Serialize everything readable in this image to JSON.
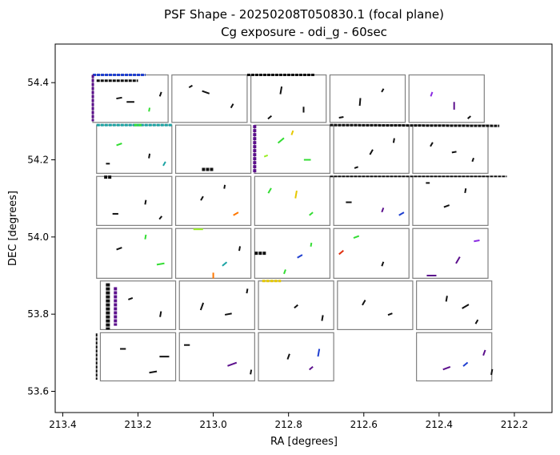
{
  "chart_data": {
    "type": "scatter",
    "title_line1": "PSF Shape - 20250208T050830.1 (focal plane)",
    "title_line2": "Cg exposure - odi_g - 60sec",
    "xlabel": "RA [degrees]",
    "ylabel": "DEC [degrees]",
    "x_inverted": true,
    "xlim": [
      213.42,
      212.1
    ],
    "ylim": [
      53.545,
      54.5
    ],
    "xticks": [
      "213.4",
      "213.2",
      "213.0",
      "212.8",
      "212.6",
      "212.4",
      "212.2"
    ],
    "yticks": [
      "53.6",
      "53.8",
      "54.0",
      "54.2",
      "54.4"
    ],
    "grid": false,
    "chip_border_color": "#808080",
    "colors": {
      "black": "#111111",
      "purple": "#5b0f8c",
      "violet": "#8a2be2",
      "blue": "#1f3fd0",
      "teal": "#1aa3a3",
      "green": "#33dd33",
      "lime": "#99ee22",
      "yellow": "#e6c800",
      "orange": "#ff7700",
      "red": "#e03010"
    },
    "chips": [
      {
        "ra": [
          213.32,
          213.12
        ],
        "dec": [
          54.297,
          54.42
        ]
      },
      {
        "ra": [
          213.11,
          212.91
        ],
        "dec": [
          54.297,
          54.42
        ]
      },
      {
        "ra": [
          212.9,
          212.7
        ],
        "dec": [
          54.297,
          54.42
        ]
      },
      {
        "ra": [
          212.69,
          212.49
        ],
        "dec": [
          54.297,
          54.42
        ]
      },
      {
        "ra": [
          212.48,
          212.28
        ],
        "dec": [
          54.297,
          54.42
        ]
      },
      {
        "ra": [
          213.31,
          213.11
        ],
        "dec": [
          54.165,
          54.29
        ]
      },
      {
        "ra": [
          213.1,
          212.9
        ],
        "dec": [
          54.165,
          54.29
        ]
      },
      {
        "ra": [
          212.89,
          212.69
        ],
        "dec": [
          54.165,
          54.29
        ]
      },
      {
        "ra": [
          212.68,
          212.48
        ],
        "dec": [
          54.165,
          54.29
        ]
      },
      {
        "ra": [
          212.47,
          212.27
        ],
        "dec": [
          54.165,
          54.29
        ]
      },
      {
        "ra": [
          213.31,
          213.11
        ],
        "dec": [
          54.03,
          54.157
        ]
      },
      {
        "ra": [
          213.1,
          212.9
        ],
        "dec": [
          54.03,
          54.157
        ]
      },
      {
        "ra": [
          212.89,
          212.69
        ],
        "dec": [
          54.03,
          54.157
        ]
      },
      {
        "ra": [
          212.68,
          212.48
        ],
        "dec": [
          54.03,
          54.157
        ]
      },
      {
        "ra": [
          212.47,
          212.27
        ],
        "dec": [
          54.03,
          54.157
        ]
      },
      {
        "ra": [
          213.31,
          213.11
        ],
        "dec": [
          53.893,
          54.022
        ]
      },
      {
        "ra": [
          213.1,
          212.9
        ],
        "dec": [
          53.893,
          54.022
        ]
      },
      {
        "ra": [
          212.89,
          212.69
        ],
        "dec": [
          53.893,
          54.022
        ]
      },
      {
        "ra": [
          212.68,
          212.48
        ],
        "dec": [
          53.893,
          54.022
        ]
      },
      {
        "ra": [
          212.47,
          212.27
        ],
        "dec": [
          53.893,
          54.022
        ]
      },
      {
        "ra": [
          213.3,
          213.1
        ],
        "dec": [
          53.76,
          53.886
        ]
      },
      {
        "ra": [
          213.09,
          212.89
        ],
        "dec": [
          53.76,
          53.886
        ]
      },
      {
        "ra": [
          212.88,
          212.68
        ],
        "dec": [
          53.76,
          53.886
        ]
      },
      {
        "ra": [
          212.67,
          212.47
        ],
        "dec": [
          53.76,
          53.886
        ]
      },
      {
        "ra": [
          212.46,
          212.26
        ],
        "dec": [
          53.76,
          53.886
        ]
      },
      {
        "ra": [
          213.3,
          213.1
        ],
        "dec": [
          53.627,
          53.752
        ]
      },
      {
        "ra": [
          213.09,
          212.89
        ],
        "dec": [
          53.627,
          53.752
        ]
      },
      {
        "ra": [
          212.88,
          212.68
        ],
        "dec": [
          53.627,
          53.752
        ]
      },
      {
        "ra": [
          212.46,
          212.26
        ],
        "dec": [
          53.627,
          53.752
        ]
      }
    ],
    "strips": [
      {
        "ra": [
          213.32,
          213.18
        ],
        "dec": [
          54.42,
          54.42
        ],
        "color": "blue",
        "width": 3
      },
      {
        "ra": [
          213.31,
          213.2
        ],
        "dec": [
          54.405,
          54.405
        ],
        "color": "black",
        "width": 3
      },
      {
        "ra": [
          213.32,
          213.32
        ],
        "dec": [
          54.42,
          54.3
        ],
        "color": "purple",
        "width": 3
      },
      {
        "ra": [
          212.91,
          212.73
        ],
        "dec": [
          54.42,
          54.42
        ],
        "color": "black",
        "width": 3
      },
      {
        "ra": [
          213.31,
          213.11
        ],
        "dec": [
          54.29,
          54.29
        ],
        "color": "teal",
        "width": 3
      },
      {
        "ra": [
          212.89,
          212.89
        ],
        "dec": [
          54.29,
          54.165
        ],
        "color": "purple",
        "width": 4
      },
      {
        "ra": [
          213.03,
          213.0
        ],
        "dec": [
          54.175,
          54.175
        ],
        "color": "black",
        "width": 4
      },
      {
        "ra": [
          212.69,
          212.24
        ],
        "dec": [
          54.29,
          54.288
        ],
        "color": "black",
        "width": 3
      },
      {
        "ra": [
          213.29,
          213.27
        ],
        "dec": [
          54.155,
          54.155
        ],
        "color": "black",
        "width": 4
      },
      {
        "ra": [
          212.69,
          212.22
        ],
        "dec": [
          54.157,
          54.157
        ],
        "color": "black",
        "width": 2
      },
      {
        "ra": [
          213.28,
          213.28
        ],
        "dec": [
          53.88,
          53.76
        ],
        "color": "black",
        "width": 5
      },
      {
        "ra": [
          213.26,
          213.26
        ],
        "dec": [
          53.87,
          53.77
        ],
        "color": "purple",
        "width": 4
      },
      {
        "ra": [
          213.31,
          213.31
        ],
        "dec": [
          53.75,
          53.63
        ],
        "color": "black",
        "width": 2
      },
      {
        "ra": [
          212.89,
          212.86
        ],
        "dec": [
          53.958,
          53.958
        ],
        "color": "black",
        "width": 4
      },
      {
        "ra": [
          212.87,
          212.82
        ],
        "dec": [
          53.886,
          53.886
        ],
        "color": "yellow",
        "width": 3
      },
      {
        "ra": [
          213.21,
          213.19
        ],
        "dec": [
          54.29,
          54.29
        ],
        "color": "green",
        "width": 3
      }
    ],
    "whiskers": [
      {
        "ra": 213.25,
        "dec": 54.36,
        "angle": 10,
        "len": 0.015,
        "color": "black"
      },
      {
        "ra": 213.17,
        "dec": 54.33,
        "angle": 80,
        "len": 0.01,
        "color": "green"
      },
      {
        "ra": 213.22,
        "dec": 54.35,
        "angle": 0,
        "len": 0.02,
        "color": "black"
      },
      {
        "ra": 213.14,
        "dec": 54.37,
        "angle": 70,
        "len": 0.012,
        "color": "black"
      },
      {
        "ra": 213.02,
        "dec": 54.375,
        "angle": -20,
        "len": 0.02,
        "color": "black"
      },
      {
        "ra": 212.95,
        "dec": 54.34,
        "angle": 60,
        "len": 0.012,
        "color": "black"
      },
      {
        "ra": 213.06,
        "dec": 54.39,
        "angle": 30,
        "len": 0.01,
        "color": "black"
      },
      {
        "ra": 212.82,
        "dec": 54.38,
        "angle": 80,
        "len": 0.02,
        "color": "black"
      },
      {
        "ra": 212.76,
        "dec": 54.33,
        "angle": 90,
        "len": 0.015,
        "color": "black"
      },
      {
        "ra": 212.85,
        "dec": 54.31,
        "angle": 40,
        "len": 0.012,
        "color": "black"
      },
      {
        "ra": 212.61,
        "dec": 54.35,
        "angle": 85,
        "len": 0.02,
        "color": "black"
      },
      {
        "ra": 212.55,
        "dec": 54.38,
        "angle": 60,
        "len": 0.01,
        "color": "black"
      },
      {
        "ra": 212.66,
        "dec": 54.31,
        "angle": 10,
        "len": 0.012,
        "color": "black"
      },
      {
        "ra": 212.36,
        "dec": 54.34,
        "angle": 90,
        "len": 0.02,
        "color": "purple"
      },
      {
        "ra": 212.42,
        "dec": 54.37,
        "angle": 70,
        "len": 0.012,
        "color": "violet"
      },
      {
        "ra": 212.32,
        "dec": 54.31,
        "angle": 40,
        "len": 0.01,
        "color": "black"
      },
      {
        "ra": 213.25,
        "dec": 54.24,
        "angle": 20,
        "len": 0.015,
        "color": "green"
      },
      {
        "ra": 213.17,
        "dec": 54.21,
        "angle": 80,
        "len": 0.012,
        "color": "black"
      },
      {
        "ra": 213.28,
        "dec": 54.19,
        "angle": 0,
        "len": 0.01,
        "color": "black"
      },
      {
        "ra": 213.13,
        "dec": 54.19,
        "angle": 60,
        "len": 0.012,
        "color": "teal"
      },
      {
        "ra": 212.82,
        "dec": 54.25,
        "angle": 40,
        "len": 0.02,
        "color": "green"
      },
      {
        "ra": 212.75,
        "dec": 54.2,
        "angle": 0,
        "len": 0.018,
        "color": "green"
      },
      {
        "ra": 212.79,
        "dec": 54.27,
        "angle": 70,
        "len": 0.012,
        "color": "yellow"
      },
      {
        "ra": 212.86,
        "dec": 54.21,
        "angle": 20,
        "len": 0.01,
        "color": "lime"
      },
      {
        "ra": 212.58,
        "dec": 54.22,
        "angle": 60,
        "len": 0.015,
        "color": "black"
      },
      {
        "ra": 212.52,
        "dec": 54.25,
        "angle": 80,
        "len": 0.012,
        "color": "black"
      },
      {
        "ra": 212.62,
        "dec": 54.18,
        "angle": 20,
        "len": 0.01,
        "color": "black"
      },
      {
        "ra": 212.36,
        "dec": 54.22,
        "angle": 10,
        "len": 0.012,
        "color": "black"
      },
      {
        "ra": 212.31,
        "dec": 54.2,
        "angle": 70,
        "len": 0.01,
        "color": "black"
      },
      {
        "ra": 212.42,
        "dec": 54.24,
        "angle": 60,
        "len": 0.012,
        "color": "black"
      },
      {
        "ra": 213.26,
        "dec": 54.06,
        "angle": 0,
        "len": 0.015,
        "color": "black"
      },
      {
        "ra": 213.18,
        "dec": 54.09,
        "angle": 80,
        "len": 0.012,
        "color": "black"
      },
      {
        "ra": 213.14,
        "dec": 54.05,
        "angle": 50,
        "len": 0.01,
        "color": "black"
      },
      {
        "ra": 213.03,
        "dec": 54.1,
        "angle": 60,
        "len": 0.012,
        "color": "black"
      },
      {
        "ra": 212.94,
        "dec": 54.06,
        "angle": 30,
        "len": 0.015,
        "color": "orange"
      },
      {
        "ra": 212.97,
        "dec": 54.13,
        "angle": 80,
        "len": 0.01,
        "color": "black"
      },
      {
        "ra": 212.85,
        "dec": 54.12,
        "angle": 60,
        "len": 0.015,
        "color": "green"
      },
      {
        "ra": 212.78,
        "dec": 54.11,
        "angle": 80,
        "len": 0.02,
        "color": "yellow"
      },
      {
        "ra": 212.74,
        "dec": 54.06,
        "angle": 40,
        "len": 0.012,
        "color": "green"
      },
      {
        "ra": 212.64,
        "dec": 54.09,
        "angle": 0,
        "len": 0.015,
        "color": "black"
      },
      {
        "ra": 212.55,
        "dec": 54.07,
        "angle": 70,
        "len": 0.012,
        "color": "purple"
      },
      {
        "ra": 212.5,
        "dec": 54.06,
        "angle": 30,
        "len": 0.015,
        "color": "blue"
      },
      {
        "ra": 212.38,
        "dec": 54.08,
        "angle": 20,
        "len": 0.015,
        "color": "black"
      },
      {
        "ra": 212.33,
        "dec": 54.12,
        "angle": 80,
        "len": 0.012,
        "color": "black"
      },
      {
        "ra": 212.43,
        "dec": 54.14,
        "angle": 0,
        "len": 0.01,
        "color": "black"
      },
      {
        "ra": 213.25,
        "dec": 53.97,
        "angle": 20,
        "len": 0.015,
        "color": "black"
      },
      {
        "ra": 213.14,
        "dec": 53.93,
        "angle": 10,
        "len": 0.02,
        "color": "green"
      },
      {
        "ra": 213.18,
        "dec": 54.0,
        "angle": 80,
        "len": 0.012,
        "color": "green"
      },
      {
        "ra": 213.04,
        "dec": 54.02,
        "angle": 0,
        "len": 0.025,
        "color": "lime"
      },
      {
        "ra": 212.97,
        "dec": 53.93,
        "angle": 40,
        "len": 0.015,
        "color": "teal"
      },
      {
        "ra": 213.0,
        "dec": 53.9,
        "angle": 90,
        "len": 0.015,
        "color": "orange"
      },
      {
        "ra": 212.93,
        "dec": 53.97,
        "angle": 80,
        "len": 0.012,
        "color": "black"
      },
      {
        "ra": 212.77,
        "dec": 53.95,
        "angle": 30,
        "len": 0.015,
        "color": "blue"
      },
      {
        "ra": 212.81,
        "dec": 53.91,
        "angle": 70,
        "len": 0.012,
        "color": "green"
      },
      {
        "ra": 212.74,
        "dec": 53.98,
        "angle": 80,
        "len": 0.01,
        "color": "green"
      },
      {
        "ra": 212.66,
        "dec": 53.96,
        "angle": 40,
        "len": 0.015,
        "color": "red"
      },
      {
        "ra": 212.62,
        "dec": 54.0,
        "angle": 20,
        "len": 0.015,
        "color": "green"
      },
      {
        "ra": 212.55,
        "dec": 53.93,
        "angle": 70,
        "len": 0.012,
        "color": "black"
      },
      {
        "ra": 212.42,
        "dec": 53.9,
        "angle": 0,
        "len": 0.025,
        "color": "purple"
      },
      {
        "ra": 212.35,
        "dec": 53.94,
        "angle": 60,
        "len": 0.02,
        "color": "purple"
      },
      {
        "ra": 212.3,
        "dec": 53.99,
        "angle": 10,
        "len": 0.015,
        "color": "violet"
      },
      {
        "ra": 213.22,
        "dec": 53.84,
        "angle": 20,
        "len": 0.012,
        "color": "black"
      },
      {
        "ra": 213.14,
        "dec": 53.8,
        "angle": 80,
        "len": 0.015,
        "color": "black"
      },
      {
        "ra": 213.03,
        "dec": 53.82,
        "angle": 70,
        "len": 0.02,
        "color": "black"
      },
      {
        "ra": 212.96,
        "dec": 53.8,
        "angle": 10,
        "len": 0.018,
        "color": "black"
      },
      {
        "ra": 212.91,
        "dec": 53.86,
        "angle": 80,
        "len": 0.012,
        "color": "black"
      },
      {
        "ra": 212.78,
        "dec": 53.82,
        "angle": 40,
        "len": 0.012,
        "color": "black"
      },
      {
        "ra": 212.71,
        "dec": 53.79,
        "angle": 80,
        "len": 0.015,
        "color": "black"
      },
      {
        "ra": 212.6,
        "dec": 53.83,
        "angle": 60,
        "len": 0.015,
        "color": "black"
      },
      {
        "ra": 212.53,
        "dec": 53.8,
        "angle": 20,
        "len": 0.012,
        "color": "black"
      },
      {
        "ra": 212.33,
        "dec": 53.82,
        "angle": 30,
        "len": 0.02,
        "color": "black"
      },
      {
        "ra": 212.38,
        "dec": 53.84,
        "angle": 80,
        "len": 0.015,
        "color": "black"
      },
      {
        "ra": 212.3,
        "dec": 53.78,
        "angle": 60,
        "len": 0.012,
        "color": "black"
      },
      {
        "ra": 213.24,
        "dec": 53.71,
        "angle": 0,
        "len": 0.015,
        "color": "black"
      },
      {
        "ra": 213.16,
        "dec": 53.65,
        "angle": 10,
        "len": 0.02,
        "color": "black"
      },
      {
        "ra": 213.13,
        "dec": 53.69,
        "angle": 0,
        "len": 0.025,
        "color": "black"
      },
      {
        "ra": 212.95,
        "dec": 53.67,
        "angle": 20,
        "len": 0.025,
        "color": "purple"
      },
      {
        "ra": 213.07,
        "dec": 53.72,
        "angle": 0,
        "len": 0.015,
        "color": "black"
      },
      {
        "ra": 212.9,
        "dec": 53.65,
        "angle": 80,
        "len": 0.012,
        "color": "black"
      },
      {
        "ra": 212.8,
        "dec": 53.69,
        "angle": 70,
        "len": 0.015,
        "color": "black"
      },
      {
        "ra": 212.72,
        "dec": 53.7,
        "angle": 80,
        "len": 0.02,
        "color": "blue"
      },
      {
        "ra": 212.74,
        "dec": 53.66,
        "angle": 40,
        "len": 0.012,
        "color": "purple"
      },
      {
        "ra": 212.38,
        "dec": 53.66,
        "angle": 20,
        "len": 0.02,
        "color": "purple"
      },
      {
        "ra": 212.33,
        "dec": 53.67,
        "angle": 40,
        "len": 0.015,
        "color": "blue"
      },
      {
        "ra": 212.28,
        "dec": 53.7,
        "angle": 70,
        "len": 0.015,
        "color": "purple"
      },
      {
        "ra": 212.26,
        "dec": 53.65,
        "angle": 80,
        "len": 0.015,
        "color": "black"
      }
    ]
  }
}
